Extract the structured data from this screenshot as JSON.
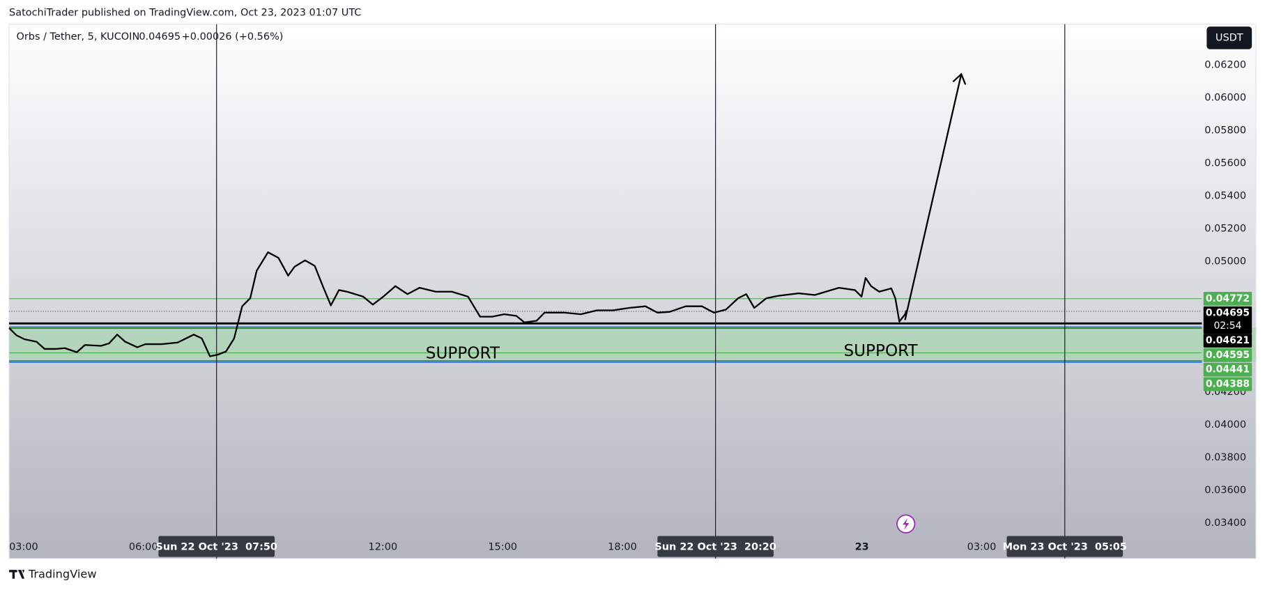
{
  "header": "SatochiTrader published on TradingView.com, Oct 23, 2023 01:07 UTC",
  "footer": "TradingView",
  "currency": "USDT",
  "chart_data": {
    "type": "line",
    "last_price": 0.04695,
    "change": "+0.00026 (+0.56%)",
    "countdown": "02:54",
    "xlim": [
      2.636,
      33.87
    ],
    "ylim": [
      0.03183,
      0.06451
    ],
    "xticks": [
      {
        "value": 3,
        "label": "03:00"
      },
      {
        "value": 6,
        "label": "06:00"
      },
      {
        "value": 12,
        "label": "12:00"
      },
      {
        "value": 15,
        "label": "15:00"
      },
      {
        "value": 18,
        "label": "18:00"
      },
      {
        "value": 24,
        "label": "23"
      },
      {
        "value": 27,
        "label": "03:00"
      }
    ],
    "yticks": [
      {
        "value": 0.034,
        "label": "0.03400"
      },
      {
        "value": 0.036,
        "label": "0.03600"
      },
      {
        "value": 0.038,
        "label": "0.03800"
      },
      {
        "value": 0.04,
        "label": "0.04000"
      },
      {
        "value": 0.042,
        "label": "0.04200"
      },
      {
        "value": 0.05,
        "label": "0.05000"
      },
      {
        "value": 0.052,
        "label": "0.05200"
      },
      {
        "value": 0.054,
        "label": "0.05400"
      },
      {
        "value": 0.056,
        "label": "0.05600"
      },
      {
        "value": 0.058,
        "label": "0.05800"
      },
      {
        "value": 0.06,
        "label": "0.06000"
      },
      {
        "value": 0.062,
        "label": "0.06200"
      }
    ],
    "series": [
      {
        "name": "Orbs / Tether, 5, KUCOIN",
        "color": "#000000",
        "x": [
          2.636,
          2.818,
          3.02,
          3.323,
          3.525,
          3.828,
          4.03,
          4.333,
          4.535,
          4.939,
          5.141,
          5.343,
          5.545,
          5.848,
          6.051,
          6.455,
          6.859,
          7.263,
          7.465,
          7.667,
          7.869,
          8.071,
          8.273,
          8.475,
          8.677,
          8.838,
          9.121,
          9.384,
          9.626,
          9.788,
          10.051,
          10.293,
          10.495,
          10.697,
          10.899,
          11.101,
          11.505,
          11.747,
          12.01,
          12.313,
          12.616,
          12.919,
          13.323,
          13.727,
          14.131,
          14.434,
          14.737,
          15.04,
          15.343,
          15.545,
          15.848,
          16.051,
          16.556,
          16.96,
          17.364,
          17.768,
          18.172,
          18.576,
          18.879,
          19.182,
          19.586,
          19.99,
          20.293,
          20.596,
          20.899,
          21.101,
          21.303,
          21.606,
          21.909,
          22.414,
          22.818,
          23.424,
          23.828,
          23.99,
          24.091,
          24.232,
          24.434,
          24.737,
          24.838,
          24.939,
          25.081,
          25.121
        ],
        "values": [
          0.04593,
          0.04549,
          0.04524,
          0.04509,
          0.04465,
          0.04465,
          0.0447,
          0.04445,
          0.04489,
          0.04484,
          0.04499,
          0.04553,
          0.04509,
          0.04475,
          0.04494,
          0.04494,
          0.04504,
          0.04553,
          0.04529,
          0.0442,
          0.0443,
          0.0445,
          0.04529,
          0.04726,
          0.04775,
          0.04943,
          0.05056,
          0.05022,
          0.04913,
          0.04968,
          0.05007,
          0.04973,
          0.04849,
          0.04731,
          0.04825,
          0.04815,
          0.04785,
          0.04736,
          0.04785,
          0.04849,
          0.048,
          0.04839,
          0.04815,
          0.04815,
          0.04785,
          0.04662,
          0.04662,
          0.04677,
          0.04667,
          0.04627,
          0.04637,
          0.04687,
          0.04687,
          0.04677,
          0.04701,
          0.04701,
          0.04716,
          0.04726,
          0.04687,
          0.04692,
          0.04726,
          0.04726,
          0.04687,
          0.04706,
          0.04775,
          0.048,
          0.04716,
          0.04775,
          0.0479,
          0.04805,
          0.04795,
          0.04839,
          0.04825,
          0.04785,
          0.04899,
          0.04849,
          0.04815,
          0.04835,
          0.04775,
          0.04632,
          0.04677,
          0.04701
        ]
      }
    ],
    "levels": [
      {
        "value": 0.04772,
        "color": "#4caf50",
        "line": "thin"
      },
      {
        "value": 0.04695,
        "color": "#000000",
        "line": "dotted"
      },
      {
        "value": 0.04621,
        "color": "#000000",
        "line": "thick"
      },
      {
        "value": 0.04595,
        "color": "#4caf50",
        "line": "zone-edge"
      },
      {
        "value": 0.04441,
        "color": "#4caf50",
        "line": "thin"
      },
      {
        "value": 0.04388,
        "color": "#4caf50",
        "line": "zone-edge"
      }
    ],
    "zone_color": "#a8d5b0",
    "vlines": [
      {
        "x": 7.833,
        "label": "Sun 22 Oct '23  07:50"
      },
      {
        "x": 20.333,
        "label": "Sun 22 Oct '23  20:20"
      },
      {
        "x": 29.083,
        "label": "Mon 23 Oct '23  05:05"
      }
    ],
    "annotations": [
      {
        "text": "SUPPORT",
        "x": 14.0,
        "y": 0.04434
      },
      {
        "text": "SUPPORT",
        "x": 24.47,
        "y": 0.04449
      }
    ],
    "arrow": {
      "x": [
        25.08,
        26.49
      ],
      "y": [
        0.04642,
        0.06146
      ]
    }
  }
}
